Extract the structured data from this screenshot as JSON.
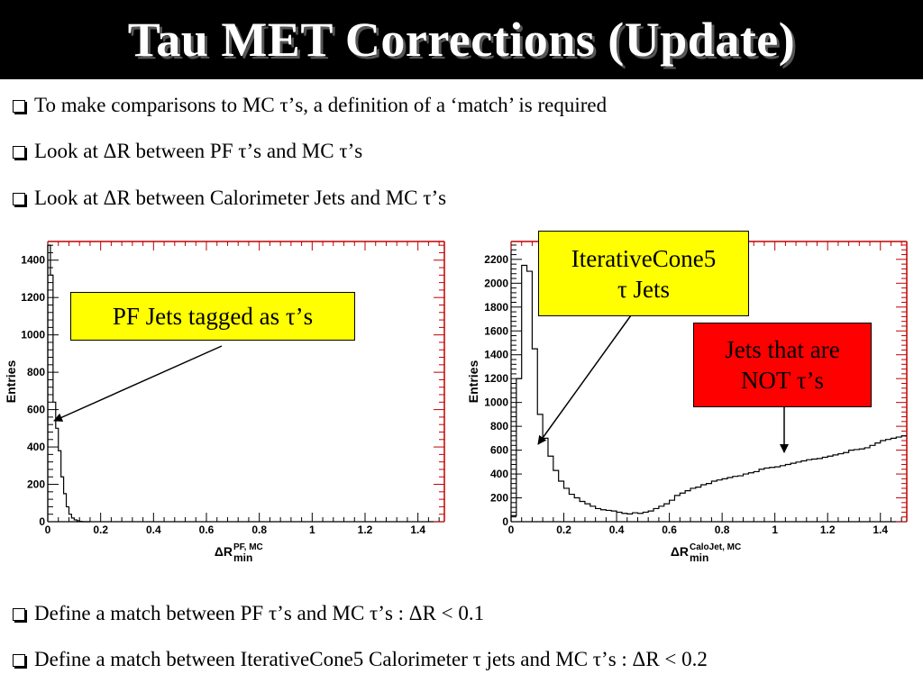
{
  "slide": {
    "title": "Tau MET Corrections (Update)",
    "bullets_top": [
      "To make comparisons to MC τ’s, a definition of a ‘match’ is required",
      "Look at ΔR between PF τ’s and MC τ’s",
      "Look at ΔR between Calorimeter Jets and MC τ’s"
    ],
    "bullets_bottom": [
      "Define a match between PF τ’s and MC τ’s :  ΔR < 0.1",
      "Define a match between IterativeCone5 Calorimeter τ jets and MC τ’s :  ΔR < 0.2"
    ],
    "callouts": {
      "pf": {
        "text": "PF Jets tagged as τ’s",
        "color": "#ffff00"
      },
      "ic5": {
        "line1": "IterativeCone5",
        "line2": "τ Jets",
        "color": "#ffff00"
      },
      "not_tau": {
        "line1": "Jets that are",
        "line2": "NOT τ’s",
        "color": "#ff0000"
      }
    }
  },
  "chart_data": [
    {
      "type": "step",
      "ylabel": "Entries",
      "xlabel_main": "ΔR",
      "xlabel_sup": "PF, MC",
      "xlabel_sub": "min",
      "xlim": [
        0,
        1.5
      ],
      "ylim": [
        0,
        1500
      ],
      "x_ticks": [
        0,
        0.2,
        0.4,
        0.6,
        0.8,
        1,
        1.2,
        1.4
      ],
      "x_tick_labels": [
        "0",
        "0.2",
        "0.4",
        "0.6",
        "0.8",
        "1",
        "1.2",
        "1.4"
      ],
      "y_ticks": [
        0,
        200,
        400,
        600,
        800,
        1000,
        1200,
        1400
      ],
      "y_tick_labels": [
        "0",
        "200",
        "400",
        "600",
        "800",
        "1000",
        "1200",
        "1400"
      ],
      "bin_width": 0.01,
      "values": [
        1480,
        1320,
        640,
        500,
        380,
        240,
        150,
        80,
        40,
        20,
        10,
        5,
        2,
        0,
        0,
        0
      ]
    },
    {
      "type": "step",
      "ylabel": "Entries",
      "xlabel_main": "ΔR",
      "xlabel_sup": "CaloJet, MC",
      "xlabel_sub": "min",
      "xlim": [
        0,
        1.5
      ],
      "ylim": [
        0,
        2350
      ],
      "x_ticks": [
        0,
        0.2,
        0.4,
        0.6,
        0.8,
        1,
        1.2,
        1.4
      ],
      "x_tick_labels": [
        "0",
        "0.2",
        "0.4",
        "0.6",
        "0.8",
        "1",
        "1.2",
        "1.4"
      ],
      "y_ticks": [
        0,
        200,
        400,
        600,
        800,
        1000,
        1200,
        1400,
        1600,
        1800,
        2000,
        2200
      ],
      "y_tick_labels": [
        "0",
        "200",
        "400",
        "600",
        "800",
        "1000",
        "1200",
        "1400",
        "1600",
        "1800",
        "2000",
        "2200"
      ],
      "bin_width": 0.02,
      "values": [
        50,
        1200,
        2150,
        2100,
        1450,
        900,
        700,
        550,
        430,
        340,
        280,
        230,
        200,
        170,
        150,
        130,
        110,
        100,
        95,
        90,
        80,
        70,
        65,
        75,
        70,
        80,
        90,
        110,
        130,
        150,
        180,
        220,
        240,
        260,
        280,
        290,
        310,
        320,
        340,
        350,
        360,
        370,
        380,
        385,
        400,
        410,
        420,
        440,
        450,
        455,
        460,
        470,
        480,
        490,
        500,
        510,
        520,
        525,
        530,
        540,
        550,
        560,
        570,
        580,
        600,
        605,
        610,
        620,
        640,
        660,
        680,
        690,
        700,
        710,
        720
      ]
    }
  ]
}
